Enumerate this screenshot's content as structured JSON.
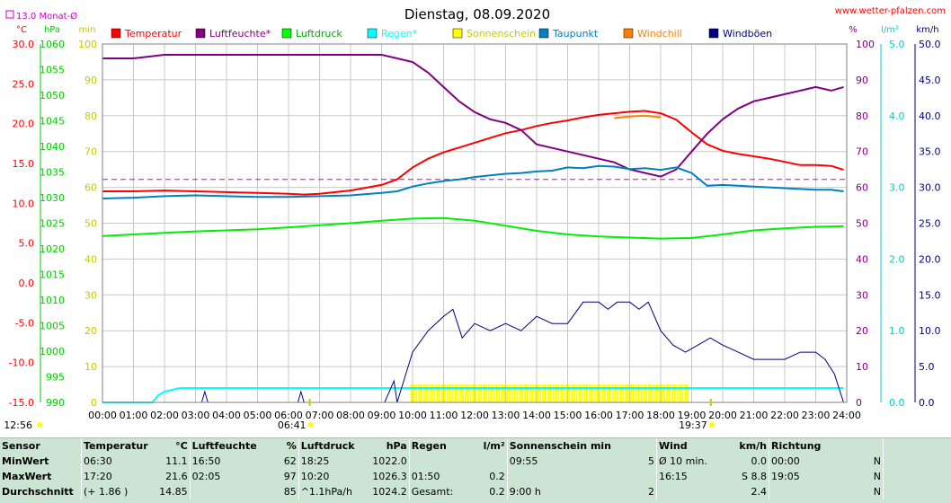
{
  "header": {
    "title": "Dienstag, 08.09.2020",
    "website": "www.wetter-pfalzen.com",
    "avg_label": "13.0 Monat-Ø"
  },
  "chart_data": {
    "type": "line",
    "title": "Dienstag, 08.09.2020",
    "x_ticks": [
      "00:00",
      "01:00",
      "02:00",
      "03:00",
      "04:00",
      "05:00",
      "06:00",
      "07:00",
      "08:00",
      "09:00",
      "10:00",
      "11:00",
      "12:00",
      "13:00",
      "14:00",
      "15:00",
      "16:00",
      "17:00",
      "18:00",
      "19:00",
      "20:00",
      "21:00",
      "22:00",
      "23:00",
      "24:00"
    ],
    "sunrise": "06:41",
    "sunset": "19:37",
    "axes": {
      "temp": {
        "unit": "°C",
        "min": -15,
        "max": 30,
        "ticks": [
          "30.0",
          "25.0",
          "20.0",
          "15.0",
          "10.0",
          "5.0",
          "0.0",
          "-5.0",
          "-10.0",
          "-15.0"
        ],
        "color": "#ff0000"
      },
      "pressure": {
        "unit": "hPa",
        "min": 990,
        "max": 1060,
        "ticks": [
          "1060",
          "1055",
          "1050",
          "1045",
          "1040",
          "1035",
          "1030",
          "1025",
          "1020",
          "1015",
          "1010",
          "1005",
          "1000",
          "995",
          "990"
        ],
        "color": "#00cc00"
      },
      "sunshine": {
        "unit": "min",
        "min": 0,
        "max": 100,
        "ticks": [
          "100",
          "90",
          "80",
          "70",
          "60",
          "50",
          "40",
          "30",
          "20",
          "10",
          "0"
        ],
        "color": "#c8c800"
      },
      "humidity": {
        "unit": "%",
        "min": 0,
        "max": 100,
        "ticks": [
          "100",
          "90",
          "80",
          "70",
          "60",
          "50",
          "40",
          "30",
          "20",
          "10",
          "0"
        ],
        "color": "#800080"
      },
      "rain": {
        "unit": "l/m²",
        "min": 0,
        "max": 5,
        "ticks": [
          "5.0",
          "4.0",
          "3.0",
          "2.0",
          "1.0",
          "0.0"
        ],
        "color": "#00cccc"
      },
      "wind": {
        "unit": "km/h",
        "min": 0,
        "max": 50,
        "ticks": [
          "50.0",
          "45.0",
          "40.0",
          "35.0",
          "30.0",
          "25.0",
          "20.0",
          "15.0",
          "10.0",
          "5.0",
          "0.0"
        ],
        "color": "#000080"
      }
    },
    "legend": [
      {
        "name": "Temperatur",
        "color": "#ff0000"
      },
      {
        "name": "Luftfeuchte*",
        "color": "#800080"
      },
      {
        "name": "Luftdruck",
        "color": "#00ff00"
      },
      {
        "name": "Regen*",
        "color": "#00ffff"
      },
      {
        "name": "Sonnenschein",
        "color": "#ffff00"
      },
      {
        "name": "Taupunkt",
        "color": "#0080c0"
      },
      {
        "name": "Windchill",
        "color": "#ff8000"
      },
      {
        "name": "Windböen",
        "color": "#000080"
      }
    ],
    "monthly_avg_temp": 13.0,
    "series": [
      {
        "name": "Temperatur",
        "axis": "temp",
        "color": "#ff0000",
        "x": [
          0,
          1,
          2,
          3,
          4,
          5,
          6,
          6.5,
          7,
          8,
          9,
          9.5,
          10,
          10.5,
          11,
          11.5,
          12,
          12.5,
          13,
          13.5,
          14,
          14.5,
          15,
          15.5,
          16,
          16.5,
          17,
          17.5,
          18,
          18.5,
          19,
          19.5,
          20,
          20.5,
          21,
          21.5,
          22,
          22.5,
          23,
          23.5,
          23.9
        ],
        "y": [
          11.5,
          11.5,
          11.6,
          11.5,
          11.4,
          11.3,
          11.2,
          11.1,
          11.2,
          11.6,
          12.3,
          13.0,
          14.5,
          15.6,
          16.4,
          17.0,
          17.6,
          18.2,
          18.8,
          19.2,
          19.7,
          20.1,
          20.4,
          20.8,
          21.1,
          21.3,
          21.5,
          21.6,
          21.3,
          20.5,
          18.9,
          17.4,
          16.6,
          16.2,
          15.9,
          15.6,
          15.2,
          14.8,
          14.8,
          14.7,
          14.2
        ]
      },
      {
        "name": "Luftfeuchte*",
        "axis": "humidity",
        "color": "#800080",
        "x": [
          0,
          1,
          2,
          3,
          4,
          5,
          6,
          7,
          8,
          9,
          9.5,
          10,
          10.5,
          11,
          11.5,
          12,
          12.5,
          13,
          13.5,
          14,
          14.5,
          15,
          15.5,
          16,
          16.5,
          17,
          17.5,
          18,
          18.5,
          19,
          19.5,
          20,
          20.5,
          21,
          21.5,
          22,
          22.5,
          23,
          23.5,
          23.9
        ],
        "y": [
          96,
          96,
          97,
          97,
          97,
          97,
          97,
          97,
          97,
          97,
          96,
          95,
          92,
          88,
          84,
          81,
          79,
          78,
          76,
          72,
          71,
          70,
          69,
          68,
          67,
          65,
          64,
          63,
          65,
          70,
          75,
          79,
          82,
          84,
          85,
          86,
          87,
          88,
          87,
          88
        ]
      },
      {
        "name": "Luftdruck",
        "axis": "pressure",
        "color": "#00ee00",
        "x": [
          0,
          1,
          2,
          3,
          4,
          5,
          6,
          7,
          8,
          9,
          10,
          11,
          12,
          13,
          14,
          15,
          16,
          17,
          18,
          19,
          20,
          21,
          22,
          23,
          23.9
        ],
        "y": [
          1022.5,
          1022.8,
          1023.1,
          1023.4,
          1023.6,
          1023.8,
          1024.2,
          1024.6,
          1025.0,
          1025.5,
          1025.9,
          1026.0,
          1025.5,
          1024.5,
          1023.5,
          1022.8,
          1022.4,
          1022.2,
          1022.0,
          1022.1,
          1022.8,
          1023.6,
          1024.0,
          1024.3,
          1024.4
        ]
      },
      {
        "name": "Regen*",
        "axis": "rain",
        "color": "#00ffff",
        "x": [
          0,
          1.6,
          1.8,
          2.0,
          2.5,
          3,
          23.9
        ],
        "y": [
          0,
          0,
          0.1,
          0.15,
          0.2,
          0.2,
          0.2
        ]
      },
      {
        "name": "Taupunkt",
        "axis": "temp",
        "color": "#0080c0",
        "x": [
          0,
          1,
          2,
          3,
          4,
          5,
          6,
          7,
          8,
          9,
          9.5,
          10,
          10.5,
          11,
          11.5,
          12,
          12.5,
          13,
          13.5,
          14,
          14.5,
          15,
          15.5,
          16,
          16.5,
          17,
          17.5,
          18,
          18.5,
          19,
          19.5,
          20,
          20.5,
          21,
          21.5,
          22,
          22.5,
          23,
          23.5,
          23.9
        ],
        "y": [
          10.6,
          10.7,
          10.9,
          11.0,
          10.9,
          10.8,
          10.8,
          10.9,
          11.0,
          11.3,
          11.5,
          12.1,
          12.5,
          12.8,
          13.0,
          13.3,
          13.5,
          13.7,
          13.8,
          14.0,
          14.1,
          14.5,
          14.4,
          14.7,
          14.6,
          14.3,
          14.4,
          14.2,
          14.5,
          13.8,
          12.2,
          12.3,
          12.2,
          12.1,
          12.0,
          11.9,
          11.8,
          11.7,
          11.7,
          11.5
        ]
      },
      {
        "name": "Windchill",
        "axis": "temp",
        "color": "#ff8000",
        "x": [
          16.5,
          17,
          17.5,
          18
        ],
        "y": [
          20.7,
          20.9,
          21.0,
          20.8
        ]
      },
      {
        "name": "Windböen",
        "axis": "wind",
        "color": "#000080",
        "x": [
          0,
          3.2,
          3.3,
          3.4,
          6,
          6.3,
          6.4,
          6.5,
          8.8,
          9.1,
          9.4,
          9.5,
          10,
          10.5,
          11,
          11.3,
          11.6,
          12,
          12.5,
          13,
          13.5,
          14,
          14.5,
          15,
          15.5,
          16,
          16.3,
          16.6,
          17,
          17.3,
          17.6,
          18,
          18.4,
          18.8,
          19.2,
          19.6,
          20,
          20.5,
          21,
          21.5,
          22,
          22.5,
          23,
          23.3,
          23.6,
          23.9
        ],
        "y": [
          0,
          0,
          1.5,
          0,
          0,
          0,
          1.5,
          0,
          0,
          0,
          3,
          0,
          7,
          10,
          12,
          13,
          9,
          11,
          10,
          11,
          10,
          12,
          11,
          11,
          14,
          14,
          13,
          14,
          14,
          13,
          14,
          10,
          8,
          7,
          8,
          9,
          8,
          7,
          6,
          6,
          6,
          7,
          7,
          6,
          4,
          0
        ]
      }
    ],
    "sunshine_blocks": {
      "from": 9.9,
      "to": 18.9,
      "value": 5
    }
  },
  "stats": {
    "headers": [
      {
        "label": "Sensor"
      },
      {
        "label": "Temperatur",
        "unit": "°C"
      },
      {
        "label": "Luftfeuchte",
        "unit": "%"
      },
      {
        "label": "Luftdruck",
        "unit": "hPa"
      },
      {
        "label": "Regen",
        "unit": "l/m²"
      },
      {
        "label": "Sonnenschein min",
        "unit": ""
      },
      {
        "label": "Wind",
        "unit": "km/h"
      },
      {
        "label": "Richtung",
        "unit": ""
      }
    ],
    "rows": [
      {
        "label": "MinWert",
        "cells": [
          "06:30",
          "11.1",
          "16:50",
          "62",
          "18:25",
          "1022.0",
          "",
          "",
          "09:55",
          "5",
          "Ø 10 min.",
          "0.0",
          "00:00",
          "N"
        ]
      },
      {
        "label": "MaxWert",
        "cells": [
          "17:20",
          "21.6",
          "02:05",
          "97",
          "10:20",
          "1026.3",
          "01:50",
          "0.2",
          "",
          "",
          "16:15",
          "S 8.8",
          "19:05",
          "N"
        ]
      },
      {
        "label": "Durchschnitt",
        "cells": [
          "(+ 1.86 )",
          "14.85",
          "",
          "85",
          "^1.1hPa/h",
          "1024.2",
          "Gesamt:",
          "0.2",
          "9:00 h",
          "2",
          "",
          "2.4",
          "",
          "N"
        ]
      }
    ]
  },
  "footer": {
    "time": "12:56"
  }
}
